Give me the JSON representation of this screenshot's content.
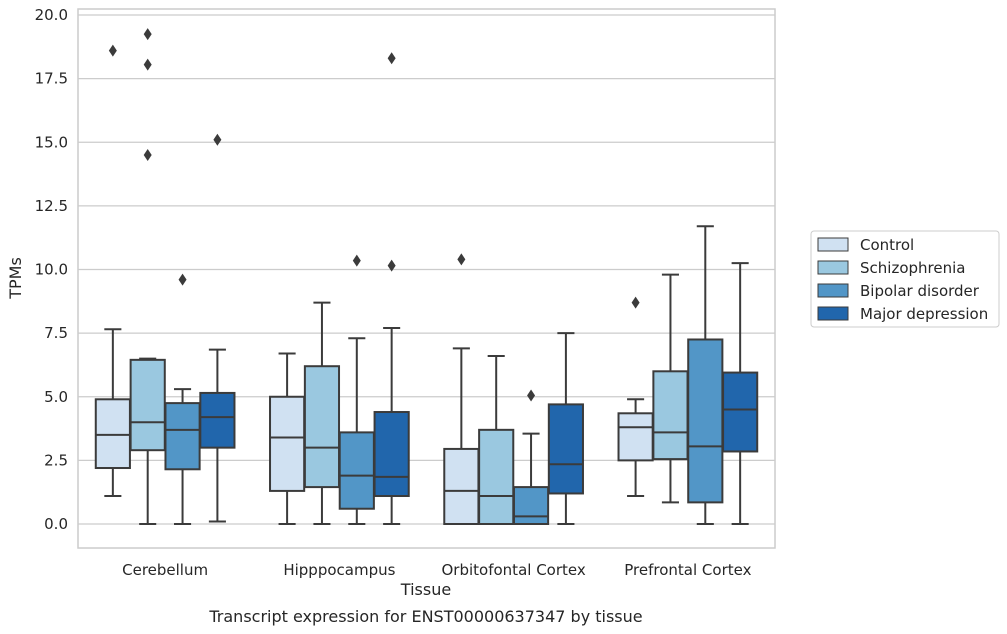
{
  "chart_data": {
    "type": "boxplot",
    "xlabel": "Tissue",
    "ylabel": "TPMs",
    "caption": "Transcript expression for ENST00000637347 by tissue",
    "ylim": [
      -0.9,
      20.2
    ],
    "yticks": [
      "0.0",
      "2.5",
      "5.0",
      "7.5",
      "10.0",
      "12.5",
      "15.0",
      "17.5",
      "20.0"
    ],
    "grid": "horizontal",
    "legend_position": "right",
    "categories": [
      "Cerebellum",
      "Hipppocampus",
      "Orbitofontal Cortex",
      "Prefrontal Cortex"
    ],
    "series": [
      {
        "name": "Control",
        "color": "#d0e1f2",
        "boxes": [
          {
            "whisker_low": 1.1,
            "q1": 2.2,
            "median": 3.5,
            "q3": 4.9,
            "whisker_high": 7.65,
            "outliers": [
              18.6
            ]
          },
          {
            "whisker_low": 0.0,
            "q1": 1.3,
            "median": 3.4,
            "q3": 5.0,
            "whisker_high": 6.7,
            "outliers": []
          },
          {
            "whisker_low": 0.0,
            "q1": 0.0,
            "median": 1.3,
            "q3": 2.95,
            "whisker_high": 6.9,
            "outliers": [
              10.4
            ]
          },
          {
            "whisker_low": 1.1,
            "q1": 2.5,
            "median": 3.8,
            "q3": 4.35,
            "whisker_high": 4.9,
            "outliers": [
              8.7
            ]
          }
        ]
      },
      {
        "name": "Schizophrenia",
        "color": "#9ac8e0",
        "boxes": [
          {
            "whisker_low": 0.0,
            "q1": 2.9,
            "median": 4.0,
            "q3": 6.45,
            "whisker_high": 6.5,
            "outliers": [
              14.5,
              18.05,
              19.25
            ]
          },
          {
            "whisker_low": 0.0,
            "q1": 1.45,
            "median": 3.0,
            "q3": 6.2,
            "whisker_high": 8.7,
            "outliers": []
          },
          {
            "whisker_low": 0.0,
            "q1": 0.0,
            "median": 1.1,
            "q3": 3.7,
            "whisker_high": 6.6,
            "outliers": []
          },
          {
            "whisker_low": 0.85,
            "q1": 2.55,
            "median": 3.6,
            "q3": 6.0,
            "whisker_high": 9.8,
            "outliers": []
          }
        ]
      },
      {
        "name": "Bipolar disorder",
        "color": "#5296c7",
        "boxes": [
          {
            "whisker_low": 0.0,
            "q1": 2.15,
            "median": 3.7,
            "q3": 4.75,
            "whisker_high": 5.3,
            "outliers": [
              9.6
            ]
          },
          {
            "whisker_low": 0.0,
            "q1": 0.6,
            "median": 1.9,
            "q3": 3.6,
            "whisker_high": 7.3,
            "outliers": [
              10.35
            ]
          },
          {
            "whisker_low": 0.0,
            "q1": 0.0,
            "median": 0.3,
            "q3": 1.45,
            "whisker_high": 3.55,
            "outliers": [
              5.05
            ]
          },
          {
            "whisker_low": 0.0,
            "q1": 0.85,
            "median": 3.05,
            "q3": 7.25,
            "whisker_high": 11.7,
            "outliers": []
          }
        ]
      },
      {
        "name": "Major depression",
        "color": "#2166ac",
        "boxes": [
          {
            "whisker_low": 0.1,
            "q1": 3.0,
            "median": 4.2,
            "q3": 5.15,
            "whisker_high": 6.85,
            "outliers": [
              15.1
            ]
          },
          {
            "whisker_low": 0.0,
            "q1": 1.1,
            "median": 1.85,
            "q3": 4.4,
            "whisker_high": 7.7,
            "outliers": [
              10.15,
              18.3
            ]
          },
          {
            "whisker_low": 0.0,
            "q1": 1.2,
            "median": 2.35,
            "q3": 4.7,
            "whisker_high": 7.5,
            "outliers": []
          },
          {
            "whisker_low": 0.0,
            "q1": 2.85,
            "median": 4.5,
            "q3": 5.95,
            "whisker_high": 10.25,
            "outliers": []
          }
        ]
      }
    ]
  }
}
